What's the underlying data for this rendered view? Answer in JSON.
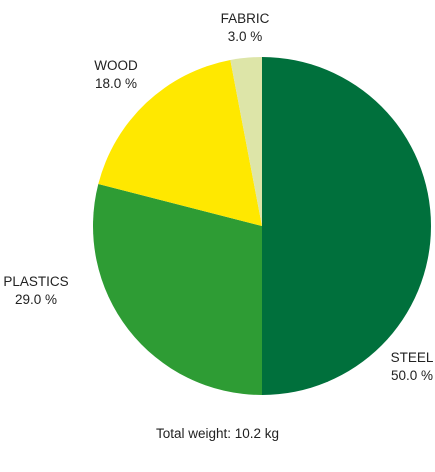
{
  "chart_data": {
    "type": "pie",
    "start_angle_deg": 90,
    "direction": "clockwise",
    "slices": [
      {
        "label": "STEEL",
        "value": 50.0,
        "value_text": "50.0 %",
        "color": "#00703c"
      },
      {
        "label": "PLASTICS",
        "value": 29.0,
        "value_text": "29.0 %",
        "color": "#2e9c34"
      },
      {
        "label": "WOOD",
        "value": 18.0,
        "value_text": "18.0 %",
        "color": "#ffe800"
      },
      {
        "label": "FABRIC",
        "value": 3.0,
        "value_text": "3.0 %",
        "color": "#dde5a8"
      }
    ],
    "footer": "Total weight: 10.2 kg"
  }
}
